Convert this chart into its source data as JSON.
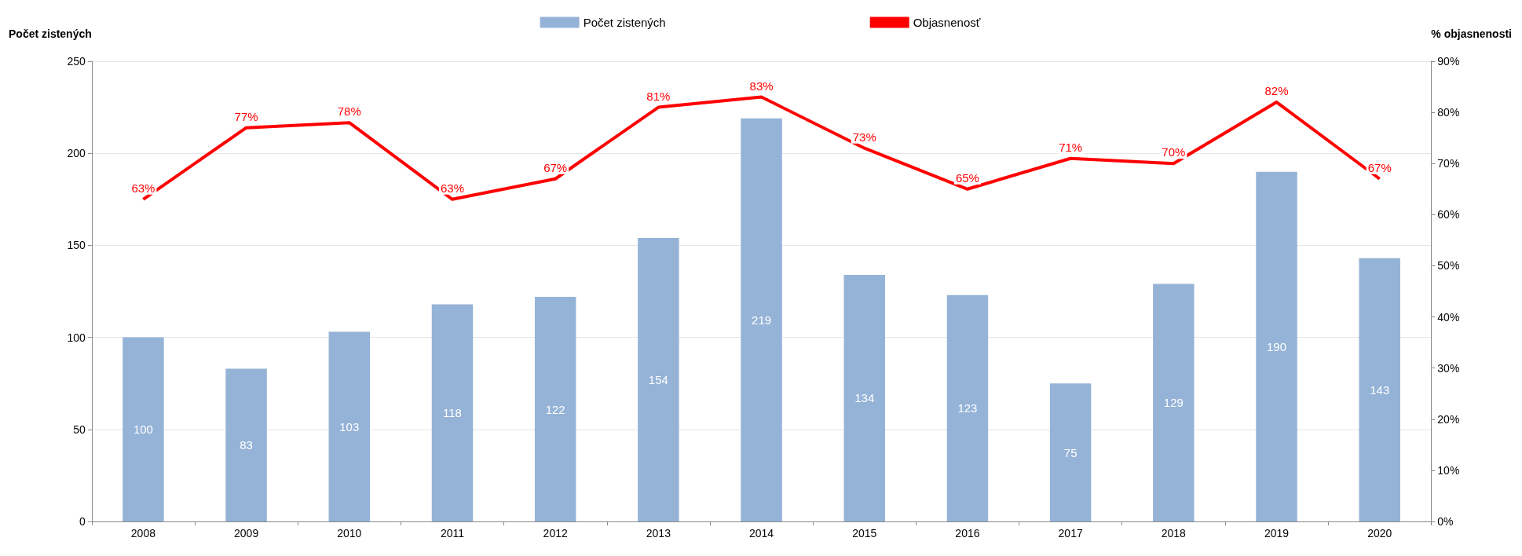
{
  "chart_data": {
    "type": "bar",
    "ylabel": "Počet zistených",
    "y2label": "% objasnenosti",
    "categories": [
      "2008",
      "2009",
      "2010",
      "2011",
      "2012",
      "2013",
      "2014",
      "2015",
      "2016",
      "2017",
      "2018",
      "2019",
      "2020"
    ],
    "series": [
      {
        "name": "Počet zistených",
        "color": "#95b3d7",
        "values": [
          100,
          83,
          103,
          118,
          122,
          154,
          219,
          134,
          123,
          75,
          129,
          190,
          143
        ],
        "data_labels": true
      },
      {
        "name": "Objasnenosť",
        "type": "line",
        "axis": "y2",
        "color": "#ff0000",
        "values": [
          63,
          77,
          78,
          63,
          67,
          81,
          83,
          73,
          65,
          71,
          70,
          82,
          67
        ],
        "value_labels": [
          "63%",
          "77%",
          "78%",
          "63%",
          "67%",
          "81%",
          "83%",
          "73%",
          "65%",
          "71%",
          "70%",
          "82%",
          "67%"
        ],
        "marker": "none"
      }
    ],
    "ylim": [
      0,
      250
    ],
    "yticks": [
      0,
      50,
      100,
      150,
      200,
      250
    ],
    "y2lim": [
      0,
      90
    ],
    "y2ticks": [
      {
        "value": 0,
        "label": "0%"
      },
      {
        "value": 10,
        "label": "10%"
      },
      {
        "value": 20,
        "label": "20%"
      },
      {
        "value": 30,
        "label": "30%"
      },
      {
        "value": 40,
        "label": "40%"
      },
      {
        "value": 50,
        "label": "50%"
      },
      {
        "value": 60,
        "label": "60%"
      },
      {
        "value": 70,
        "label": "70%"
      },
      {
        "value": 80,
        "label": "80%"
      },
      {
        "value": 90,
        "label": "90%"
      }
    ],
    "grid": "y",
    "legend": "top"
  }
}
